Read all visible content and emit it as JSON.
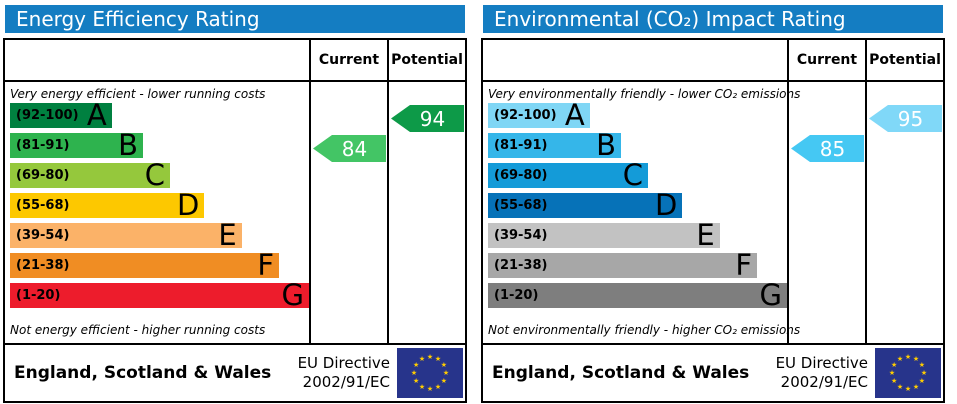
{
  "chart_data": [
    {
      "type": "bar",
      "title": "Energy Efficiency Rating",
      "header_color": "#147dc2",
      "columns": [
        "Current",
        "Potential"
      ],
      "top_caption": "Very energy efficient - lower running costs",
      "bottom_caption": "Not energy efficient - higher running costs",
      "axis_note": "bands span scores 1-100, bar length increases from A to G",
      "bands": [
        {
          "letter": "A",
          "range": "(92-100)",
          "min": 92,
          "max": 100,
          "color": "#008040",
          "width_pct": 34
        },
        {
          "letter": "B",
          "range": "(81-91)",
          "min": 81,
          "max": 91,
          "color": "#2eb34e",
          "width_pct": 44.5
        },
        {
          "letter": "C",
          "range": "(69-80)",
          "min": 69,
          "max": 80,
          "color": "#95c83c",
          "width_pct": 53.5
        },
        {
          "letter": "D",
          "range": "(55-68)",
          "min": 55,
          "max": 68,
          "color": "#fdc800",
          "width_pct": 65
        },
        {
          "letter": "E",
          "range": "(39-54)",
          "min": 39,
          "max": 54,
          "color": "#fbb268",
          "width_pct": 77.5
        },
        {
          "letter": "F",
          "range": "(21-38)",
          "min": 21,
          "max": 38,
          "color": "#f08d23",
          "width_pct": 90
        },
        {
          "letter": "G",
          "range": "(1-20)",
          "min": 1,
          "max": 20,
          "color": "#ed1c2c",
          "width_pct": 100
        }
      ],
      "current": {
        "value": 84,
        "band": "B",
        "color": "#43c565"
      },
      "potential": {
        "value": 94,
        "band": "A",
        "color": "#0d9a48"
      },
      "footer": {
        "region": "England, Scotland & Wales",
        "directive_line1": "EU Directive",
        "directive_line2": "2002/91/EC",
        "flag": "eu-flag"
      }
    },
    {
      "type": "bar",
      "title": "Environmental (CO₂) Impact Rating",
      "header_color": "#147dc2",
      "columns": [
        "Current",
        "Potential"
      ],
      "top_caption": "Very environmentally friendly - lower CO₂ emissions",
      "bottom_caption": "Not environmentally friendly - higher CO₂ emissions",
      "axis_note": "bands span scores 1-100, bar length increases from A to G",
      "bands": [
        {
          "letter": "A",
          "range": "(92-100)",
          "min": 92,
          "max": 100,
          "color": "#7fd6f5",
          "width_pct": 34
        },
        {
          "letter": "B",
          "range": "(81-91)",
          "min": 81,
          "max": 91,
          "color": "#35b6e9",
          "width_pct": 44.5
        },
        {
          "letter": "C",
          "range": "(69-80)",
          "min": 69,
          "max": 80,
          "color": "#149bd8",
          "width_pct": 53.5
        },
        {
          "letter": "D",
          "range": "(55-68)",
          "min": 55,
          "max": 68,
          "color": "#0672b8",
          "width_pct": 65
        },
        {
          "letter": "E",
          "range": "(39-54)",
          "min": 39,
          "max": 54,
          "color": "#c2c2c2",
          "width_pct": 77.5
        },
        {
          "letter": "F",
          "range": "(21-38)",
          "min": 21,
          "max": 38,
          "color": "#a7a7a7",
          "width_pct": 90
        },
        {
          "letter": "G",
          "range": "(1-20)",
          "min": 1,
          "max": 20,
          "color": "#7e7e7e",
          "width_pct": 100
        }
      ],
      "current": {
        "value": 85,
        "band": "B",
        "color": "#45c8f3"
      },
      "potential": {
        "value": 95,
        "band": "A",
        "color": "#80d8f8"
      },
      "footer": {
        "region": "England, Scotland & Wales",
        "directive_line1": "EU Directive",
        "directive_line2": "2002/91/EC",
        "flag": "eu-flag"
      }
    }
  ]
}
